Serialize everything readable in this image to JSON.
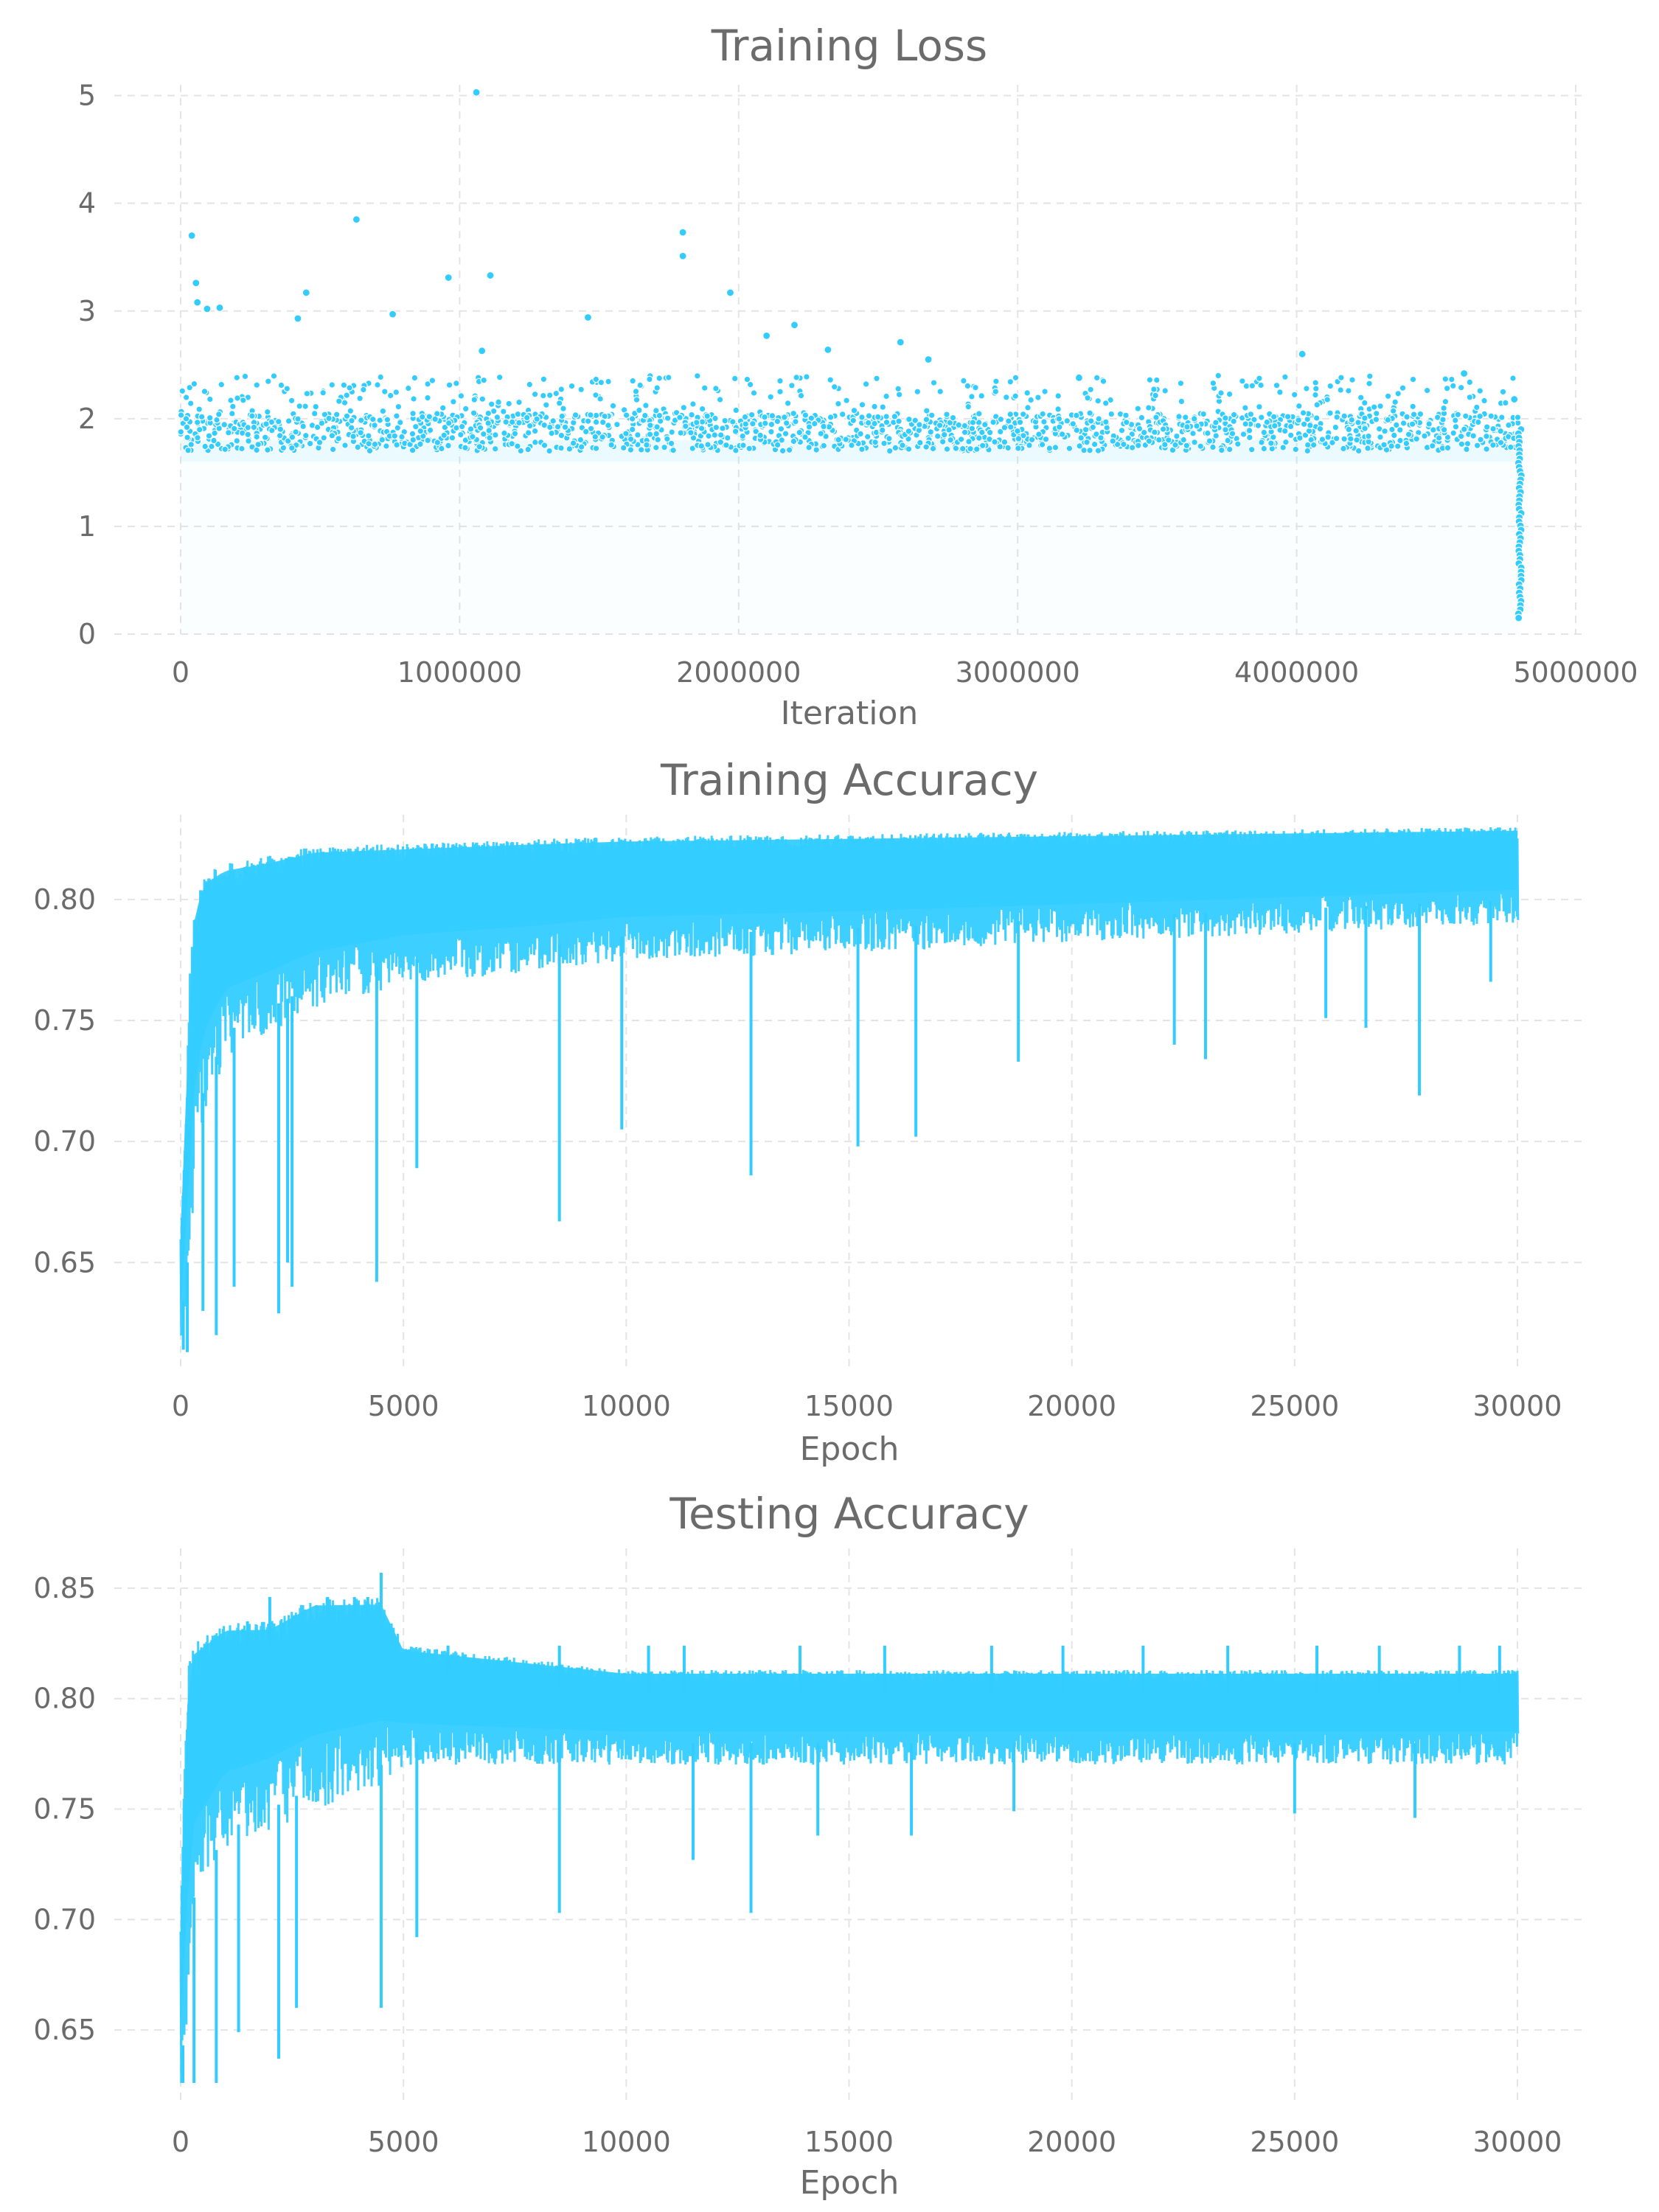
{
  "colors": {
    "series": "#33ccff",
    "text": "#6b6b6b",
    "grid": "#e4e4e4",
    "background": "#ffffff"
  },
  "chart_data": [
    {
      "id": "loss",
      "type": "scatter",
      "title": "Training Loss",
      "xlabel": "Iteration",
      "ylabel": "",
      "xlim": [
        0,
        5000000
      ],
      "ylim": [
        0,
        5.1
      ],
      "xticks": [
        0,
        1000000,
        2000000,
        3000000,
        4000000,
        5000000
      ],
      "xtick_labels": [
        "0",
        "1000000",
        "2000000",
        "3000000",
        "4000000",
        "5000000"
      ],
      "yticks": [
        0,
        1,
        2,
        3,
        4,
        5
      ],
      "ytick_labels": [
        "0",
        "1",
        "2",
        "3",
        "4",
        "5"
      ],
      "grid": true,
      "legend": "none",
      "notable_points": [
        {
          "x": 40000,
          "y": 3.7
        },
        {
          "x": 55000,
          "y": 3.26
        },
        {
          "x": 60000,
          "y": 3.08
        },
        {
          "x": 95000,
          "y": 3.02
        },
        {
          "x": 140000,
          "y": 3.03
        },
        {
          "x": 420000,
          "y": 2.93
        },
        {
          "x": 450000,
          "y": 3.17
        },
        {
          "x": 630000,
          "y": 3.85
        },
        {
          "x": 760000,
          "y": 2.97
        },
        {
          "x": 960000,
          "y": 3.31
        },
        {
          "x": 1060000,
          "y": 5.03
        },
        {
          "x": 1110000,
          "y": 3.33
        },
        {
          "x": 1080000,
          "y": 2.63
        },
        {
          "x": 1460000,
          "y": 2.94
        },
        {
          "x": 1800000,
          "y": 3.73
        },
        {
          "x": 1800000,
          "y": 3.51
        },
        {
          "x": 1970000,
          "y": 3.17
        },
        {
          "x": 2100000,
          "y": 2.77
        },
        {
          "x": 2200000,
          "y": 2.87
        },
        {
          "x": 2320000,
          "y": 2.64
        },
        {
          "x": 2580000,
          "y": 2.71
        },
        {
          "x": 2680000,
          "y": 2.55
        },
        {
          "x": 3220000,
          "y": 2.38
        },
        {
          "x": 4020000,
          "y": 2.6
        },
        {
          "x": 4600000,
          "y": 2.42
        },
        {
          "x": 4780000,
          "y": 2.18
        }
      ],
      "band": {
        "x_start": 0,
        "x_end": 4800000,
        "dense_top": 2.0,
        "sparse_top": 2.4,
        "dense_bottom": 1.6
      },
      "final_drop": {
        "x": 4800000,
        "y_from": 1.9,
        "y_to": 0.15
      }
    },
    {
      "id": "train-acc",
      "type": "line",
      "title": "Training Accuracy",
      "xlabel": "Epoch",
      "ylabel": "",
      "xlim": [
        0,
        30000
      ],
      "ylim": [
        0.605,
        0.835
      ],
      "xticks": [
        0,
        5000,
        10000,
        15000,
        20000,
        25000,
        30000
      ],
      "xtick_labels": [
        "0",
        "5000",
        "10000",
        "15000",
        "20000",
        "25000",
        "30000"
      ],
      "yticks": [
        0.65,
        0.7,
        0.75,
        0.8
      ],
      "ytick_labels": [
        "0.65",
        "0.70",
        "0.75",
        "0.80"
      ],
      "grid": true,
      "legend": "none",
      "envelope": {
        "x": [
          0,
          100,
          200,
          300,
          500,
          1000,
          2000,
          3000,
          5000,
          8000,
          10000,
          15000,
          20000,
          25000,
          30000
        ],
        "upper": [
          0.665,
          0.7,
          0.77,
          0.795,
          0.81,
          0.815,
          0.818,
          0.822,
          0.823,
          0.825,
          0.826,
          0.827,
          0.828,
          0.829,
          0.83
        ],
        "lower": [
          0.615,
          0.63,
          0.65,
          0.68,
          0.71,
          0.735,
          0.745,
          0.755,
          0.765,
          0.77,
          0.775,
          0.778,
          0.782,
          0.786,
          0.79
        ]
      },
      "dips": [
        {
          "x": 60,
          "y": 0.614
        },
        {
          "x": 150,
          "y": 0.613
        },
        {
          "x": 500,
          "y": 0.63
        },
        {
          "x": 800,
          "y": 0.62
        },
        {
          "x": 1200,
          "y": 0.64
        },
        {
          "x": 2200,
          "y": 0.629
        },
        {
          "x": 2400,
          "y": 0.65
        },
        {
          "x": 2500,
          "y": 0.64
        },
        {
          "x": 4400,
          "y": 0.642
        },
        {
          "x": 5300,
          "y": 0.689
        },
        {
          "x": 8500,
          "y": 0.667
        },
        {
          "x": 9900,
          "y": 0.705
        },
        {
          "x": 12800,
          "y": 0.686
        },
        {
          "x": 15200,
          "y": 0.698
        },
        {
          "x": 16500,
          "y": 0.702
        },
        {
          "x": 18800,
          "y": 0.733
        },
        {
          "x": 22300,
          "y": 0.74
        },
        {
          "x": 23000,
          "y": 0.734
        },
        {
          "x": 25700,
          "y": 0.751
        },
        {
          "x": 26600,
          "y": 0.747
        },
        {
          "x": 27800,
          "y": 0.719
        },
        {
          "x": 29400,
          "y": 0.766
        }
      ]
    },
    {
      "id": "test-acc",
      "type": "line",
      "title": "Testing Accuracy",
      "xlabel": "Epoch",
      "ylabel": "",
      "xlim": [
        0,
        30000
      ],
      "ylim": [
        0.616,
        0.868
      ],
      "xticks": [
        0,
        5000,
        10000,
        15000,
        20000,
        25000,
        30000
      ],
      "xtick_labels": [
        "0",
        "5000",
        "10000",
        "15000",
        "20000",
        "25000",
        "30000"
      ],
      "yticks": [
        0.65,
        0.7,
        0.75,
        0.8,
        0.85
      ],
      "ytick_labels": [
        "0.65",
        "0.70",
        "0.75",
        "0.80",
        "0.85"
      ],
      "grid": true,
      "legend": "none",
      "envelope": {
        "x": [
          0,
          100,
          200,
          300,
          1000,
          2000,
          3000,
          4500,
          5000,
          10000,
          15000,
          20000,
          25000,
          30000
        ],
        "upper": [
          0.7,
          0.78,
          0.825,
          0.825,
          0.835,
          0.835,
          0.846,
          0.846,
          0.824,
          0.813,
          0.813,
          0.813,
          0.813,
          0.813
        ],
        "lower": [
          0.626,
          0.64,
          0.68,
          0.7,
          0.73,
          0.74,
          0.75,
          0.76,
          0.77,
          0.77,
          0.77,
          0.77,
          0.77,
          0.77
        ]
      },
      "spikes_up": [
        {
          "x": 4500,
          "y": 0.857
        },
        {
          "x": 3300,
          "y": 0.846
        },
        {
          "x": 3900,
          "y": 0.846
        },
        {
          "x": 4200,
          "y": 0.846
        },
        {
          "x": 2000,
          "y": 0.846
        },
        {
          "x": 1500,
          "y": 0.835
        },
        {
          "x": 6000,
          "y": 0.824
        },
        {
          "x": 8500,
          "y": 0.824
        },
        {
          "x": 10500,
          "y": 0.824
        },
        {
          "x": 11300,
          "y": 0.824
        },
        {
          "x": 13900,
          "y": 0.824
        },
        {
          "x": 15800,
          "y": 0.824
        },
        {
          "x": 18200,
          "y": 0.824
        },
        {
          "x": 19800,
          "y": 0.824
        },
        {
          "x": 21600,
          "y": 0.824
        },
        {
          "x": 23500,
          "y": 0.824
        },
        {
          "x": 25500,
          "y": 0.824
        },
        {
          "x": 26900,
          "y": 0.824
        },
        {
          "x": 28700,
          "y": 0.824
        },
        {
          "x": 29600,
          "y": 0.824
        }
      ],
      "dips": [
        {
          "x": 50,
          "y": 0.626
        },
        {
          "x": 300,
          "y": 0.626
        },
        {
          "x": 800,
          "y": 0.626
        },
        {
          "x": 1300,
          "y": 0.649
        },
        {
          "x": 2200,
          "y": 0.637
        },
        {
          "x": 2600,
          "y": 0.66
        },
        {
          "x": 4500,
          "y": 0.66
        },
        {
          "x": 5300,
          "y": 0.692
        },
        {
          "x": 8500,
          "y": 0.703
        },
        {
          "x": 11500,
          "y": 0.727
        },
        {
          "x": 12800,
          "y": 0.703
        },
        {
          "x": 14300,
          "y": 0.738
        },
        {
          "x": 16400,
          "y": 0.738
        },
        {
          "x": 18700,
          "y": 0.749
        },
        {
          "x": 25000,
          "y": 0.748
        },
        {
          "x": 27700,
          "y": 0.746
        }
      ]
    }
  ]
}
